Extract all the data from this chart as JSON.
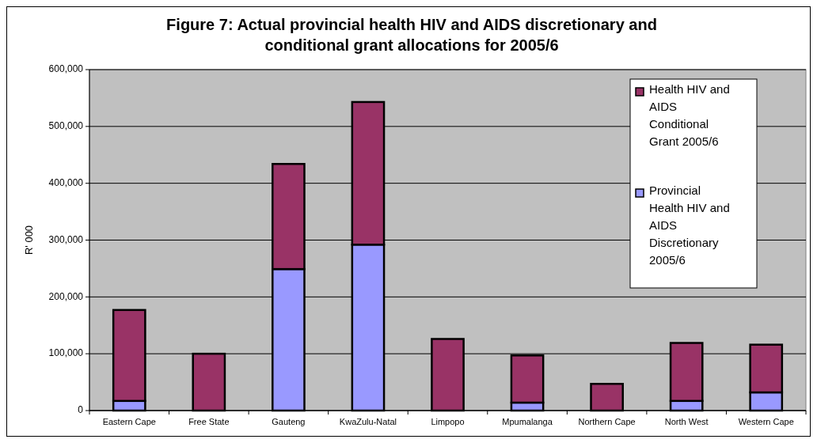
{
  "chart_data": {
    "type": "bar",
    "title": "Figure 7: Actual provincial health HIV and AIDS discretionary and conditional grant allocations for 2005/6",
    "ylabel": "R' 000",
    "categories": [
      "Eastern Cape",
      "Free State",
      "Gauteng",
      "KwaZulu-Natal",
      "Limpopo",
      "Mpumalanga",
      "Northern Cape",
      "North West",
      "Western Cape"
    ],
    "stacked": true,
    "series": [
      {
        "name": "Provincial Health HIV and AIDS Discretionary 2005/6",
        "color": "#9999ff",
        "values": [
          17000,
          0,
          249000,
          292000,
          0,
          14000,
          0,
          17000,
          32000
        ]
      },
      {
        "name": "Health HIV and AIDS Conditional Grant 2005/6",
        "color": "#993366",
        "values": [
          160000,
          100000,
          185000,
          251000,
          126000,
          83000,
          47000,
          102000,
          84000
        ]
      }
    ],
    "ylim": [
      0,
      600000
    ],
    "yticks": [
      {
        "value": 0,
        "label": "0"
      },
      {
        "value": 100000,
        "label": "100,000"
      },
      {
        "value": 200000,
        "label": "200,000"
      },
      {
        "value": 300000,
        "label": "300,000"
      },
      {
        "value": 400000,
        "label": "400,000"
      },
      {
        "value": 500000,
        "label": "500,000"
      },
      {
        "value": 600000,
        "label": "600,000"
      }
    ],
    "grid": "y",
    "legend": "top right"
  }
}
